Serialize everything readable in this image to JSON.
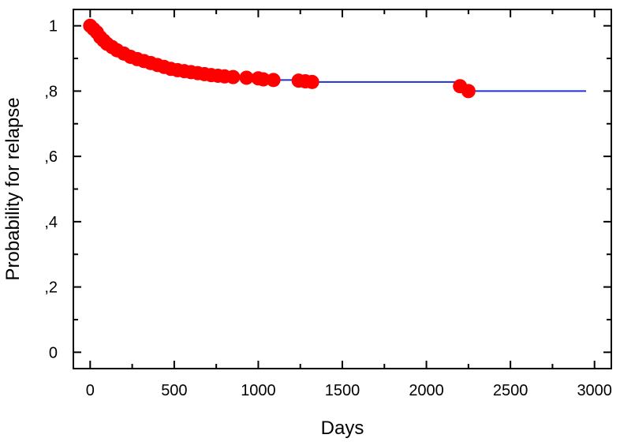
{
  "chart_data": {
    "type": "line",
    "title": "",
    "xlabel": "Days",
    "ylabel": "Probability for relapse",
    "xlim": [
      -100,
      3100
    ],
    "ylim": [
      -0.05,
      1.05
    ],
    "x_ticks": [
      0,
      500,
      1000,
      1500,
      2000,
      2500,
      3000
    ],
    "x_tick_labels": [
      "0",
      "500",
      "1000",
      "1500",
      "2000",
      "2500",
      "3000"
    ],
    "y_ticks": [
      0,
      0.2,
      0.4,
      0.6,
      0.8,
      1.0
    ],
    "y_tick_labels": [
      "0",
      ",2",
      ",4",
      ",6",
      ",8",
      "1"
    ],
    "grid": false,
    "colors": {
      "line": "#2233cc",
      "markers": "#ff0000",
      "axes": "#000000"
    },
    "series": [
      {
        "style": "step-line",
        "x": [
          0,
          20,
          40,
          60,
          80,
          100,
          130,
          160,
          200,
          240,
          280,
          320,
          360,
          400,
          440,
          480,
          520,
          560,
          600,
          640,
          680,
          720,
          760,
          800,
          850,
          930,
          1000,
          1030,
          1090,
          1240,
          1280,
          1320,
          2200,
          2250,
          2950
        ],
        "y": [
          1.0,
          0.99,
          0.98,
          0.965,
          0.955,
          0.945,
          0.935,
          0.925,
          0.915,
          0.905,
          0.898,
          0.892,
          0.886,
          0.88,
          0.874,
          0.868,
          0.864,
          0.861,
          0.858,
          0.855,
          0.852,
          0.849,
          0.847,
          0.845,
          0.843,
          0.841,
          0.839,
          0.836,
          0.834,
          0.832,
          0.83,
          0.828,
          0.815,
          0.8,
          0.8
        ]
      },
      {
        "style": "markers",
        "x": [
          0,
          20,
          40,
          60,
          80,
          100,
          130,
          160,
          200,
          240,
          280,
          320,
          360,
          400,
          440,
          480,
          520,
          560,
          600,
          640,
          680,
          720,
          760,
          800,
          850,
          930,
          1000,
          1030,
          1090,
          1240,
          1280,
          1320,
          2200,
          2250
        ],
        "y": [
          1.0,
          0.99,
          0.98,
          0.965,
          0.955,
          0.945,
          0.935,
          0.925,
          0.915,
          0.905,
          0.898,
          0.892,
          0.886,
          0.88,
          0.874,
          0.868,
          0.864,
          0.861,
          0.858,
          0.855,
          0.852,
          0.849,
          0.847,
          0.845,
          0.843,
          0.841,
          0.839,
          0.836,
          0.834,
          0.832,
          0.83,
          0.828,
          0.815,
          0.8
        ]
      }
    ]
  }
}
